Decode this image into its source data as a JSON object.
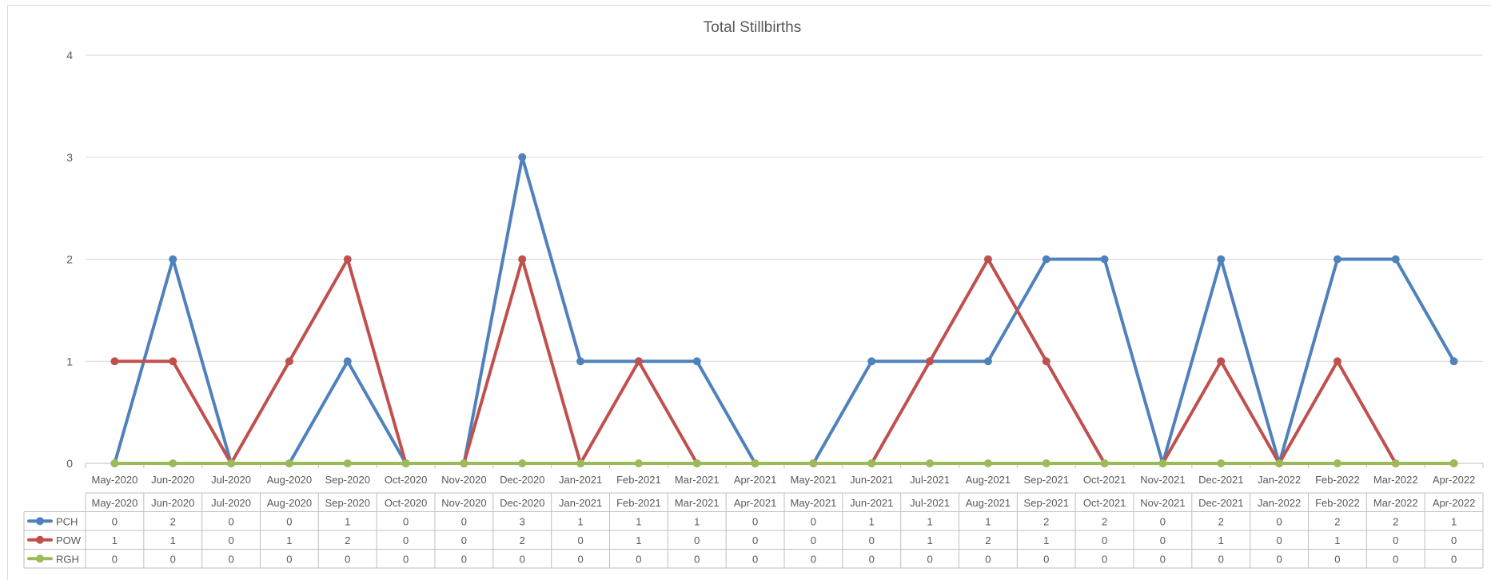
{
  "chart_data": {
    "type": "line",
    "title": "Total Stillbirths",
    "xlabel": "",
    "ylabel": "",
    "ylim": [
      0,
      4
    ],
    "yticks": [
      "0",
      "1",
      "2",
      "3",
      "4"
    ],
    "grid": true,
    "legend": "data-table",
    "categories": [
      "May-2020",
      "Jun-2020",
      "Jul-2020",
      "Aug-2020",
      "Sep-2020",
      "Oct-2020",
      "Nov-2020",
      "Dec-2020",
      "Jan-2021",
      "Feb-2021",
      "Mar-2021",
      "Apr-2021",
      "May-2021",
      "Jun-2021",
      "Jul-2021",
      "Aug-2021",
      "Sep-2021",
      "Oct-2021",
      "Nov-2021",
      "Dec-2021",
      "Jan-2022",
      "Feb-2022",
      "Mar-2022",
      "Apr-2022"
    ],
    "series": [
      {
        "name": "PCH",
        "color": "#4f81bd",
        "values": [
          0,
          2,
          0,
          0,
          1,
          0,
          0,
          3,
          1,
          1,
          1,
          0,
          0,
          1,
          1,
          1,
          2,
          2,
          0,
          2,
          0,
          2,
          2,
          1
        ]
      },
      {
        "name": "POW",
        "color": "#c0504d",
        "values": [
          1,
          1,
          0,
          1,
          2,
          0,
          0,
          2,
          0,
          1,
          0,
          0,
          0,
          0,
          1,
          2,
          1,
          0,
          0,
          1,
          0,
          1,
          0,
          0
        ]
      },
      {
        "name": "RGH",
        "color": "#9bbb59",
        "values": [
          0,
          0,
          0,
          0,
          0,
          0,
          0,
          0,
          0,
          0,
          0,
          0,
          0,
          0,
          0,
          0,
          0,
          0,
          0,
          0,
          0,
          0,
          0,
          0
        ]
      }
    ]
  }
}
